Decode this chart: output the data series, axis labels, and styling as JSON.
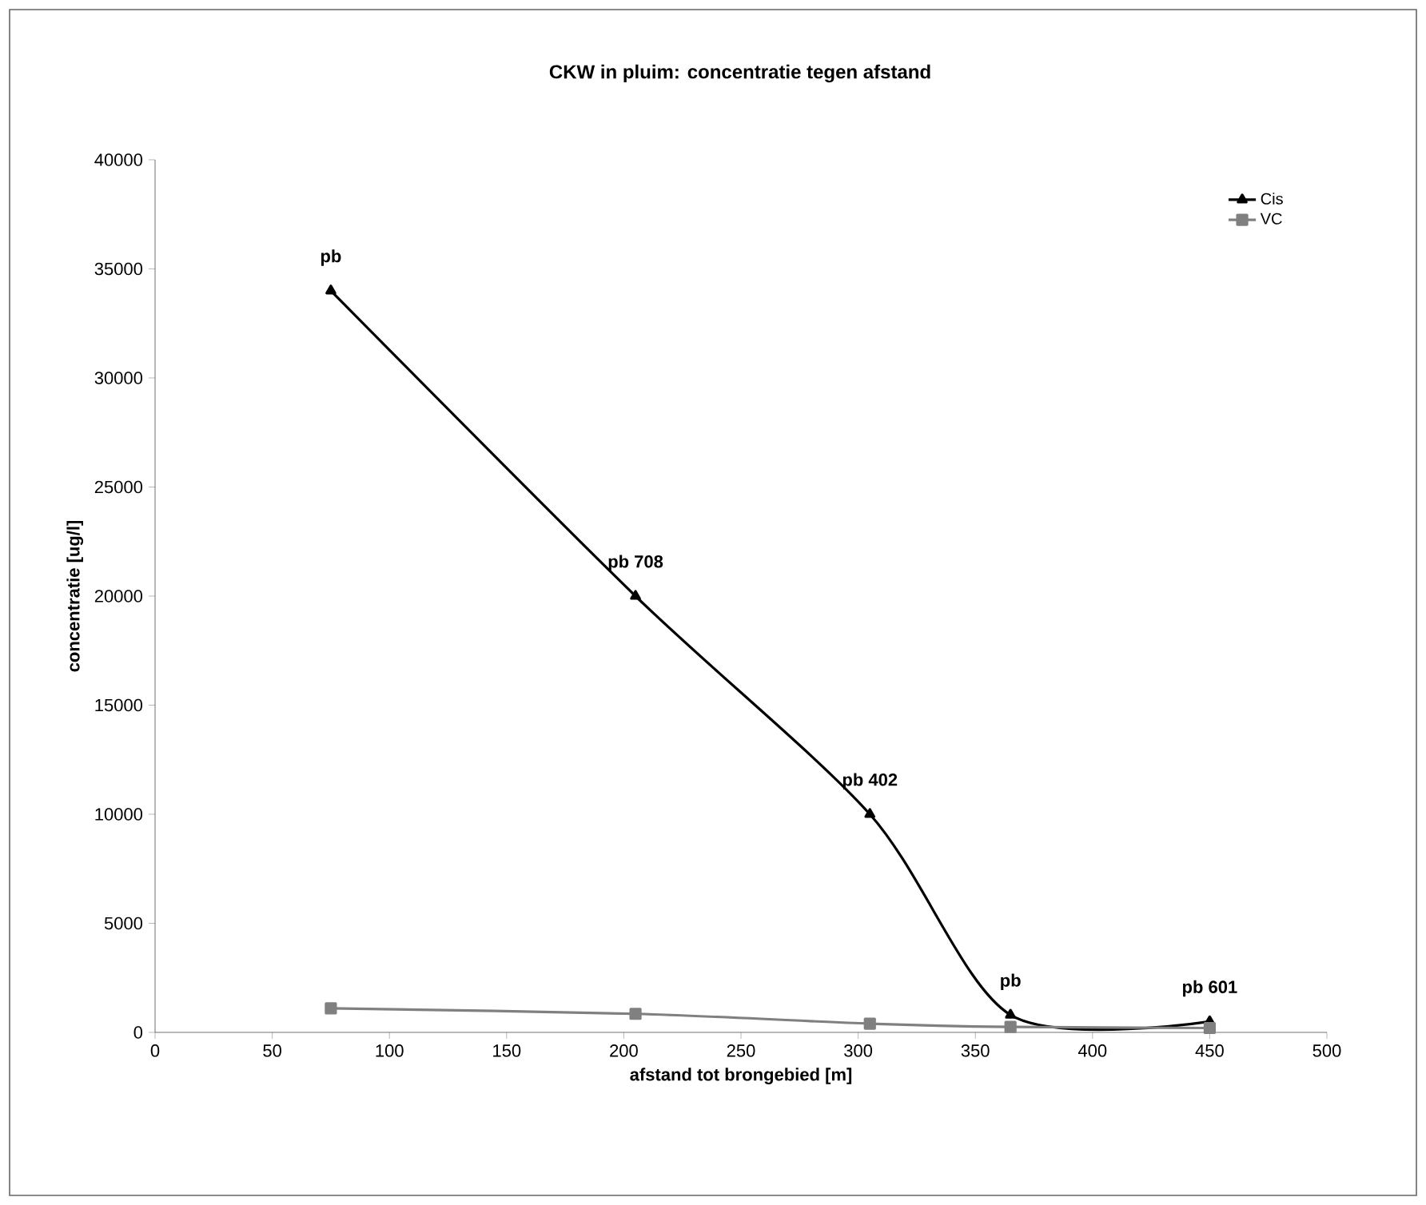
{
  "chart_data": {
    "type": "line",
    "title": "CKW in pluim: concentratie tegen afstand",
    "xlabel": "afstand tot brongebied [m]",
    "ylabel": "concentratie [ug/l]",
    "x": [
      75,
      205,
      305,
      365,
      450
    ],
    "series": [
      {
        "name": "Cis",
        "color": "#000000",
        "marker": "triangle",
        "values": [
          34000,
          20000,
          10000,
          800,
          500
        ]
      },
      {
        "name": "VC",
        "color": "#808080",
        "marker": "square",
        "values": [
          1100,
          850,
          400,
          250,
          200
        ]
      }
    ],
    "xlim": [
      0,
      500
    ],
    "xticks": [
      0,
      50,
      100,
      150,
      200,
      250,
      300,
      350,
      400,
      450,
      500
    ],
    "ylim": [
      0,
      40000
    ],
    "yticks": [
      0,
      5000,
      10000,
      15000,
      20000,
      25000,
      30000,
      35000,
      40000
    ],
    "grid": false,
    "legend": "top right",
    "line_style": "solid",
    "annotations": [
      {
        "text": "pb",
        "x": 75,
        "y": 34000
      },
      {
        "text": "pb 708",
        "x": 205,
        "y": 20000
      },
      {
        "text": "pb 402",
        "x": 305,
        "y": 10000
      },
      {
        "text": "pb",
        "x": 365,
        "y": 800
      },
      {
        "text": "pb 601",
        "x": 450,
        "y": 500
      }
    ]
  }
}
